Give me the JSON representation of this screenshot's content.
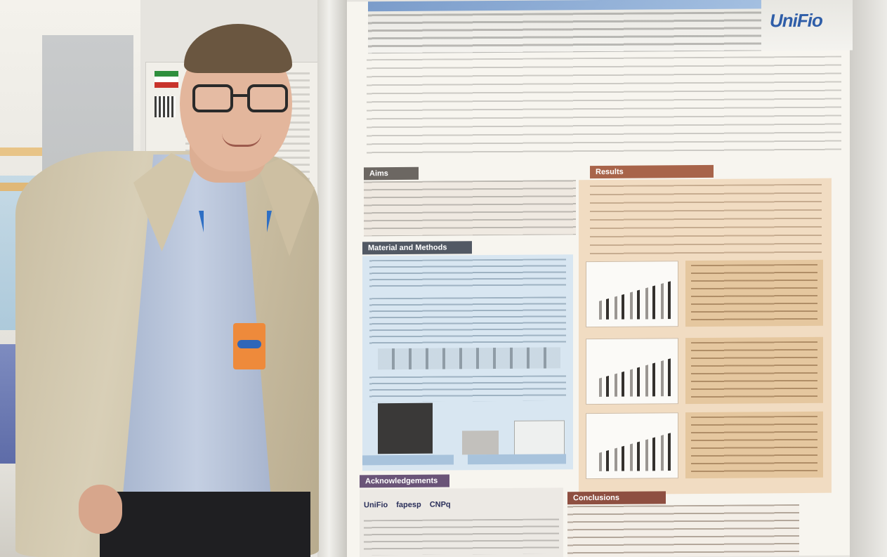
{
  "poster": {
    "logo_text": "UniFio",
    "sections": {
      "aims": "Aims",
      "results": "Results",
      "methods": "Material and Methods",
      "acknowledgements": "Acknowledgements",
      "conclusions": "Conclusions"
    },
    "acknowledgement_logos": [
      "UniFio",
      "fapesp",
      "CNPq"
    ]
  },
  "colors": {
    "results_panel": "#f1dcc2",
    "methods_panel": "#d8e6f1",
    "logo_blue": "#2f5ea8",
    "lanyard_blue": "#2e6fc4",
    "badge_orange": "#ee8a3b"
  }
}
